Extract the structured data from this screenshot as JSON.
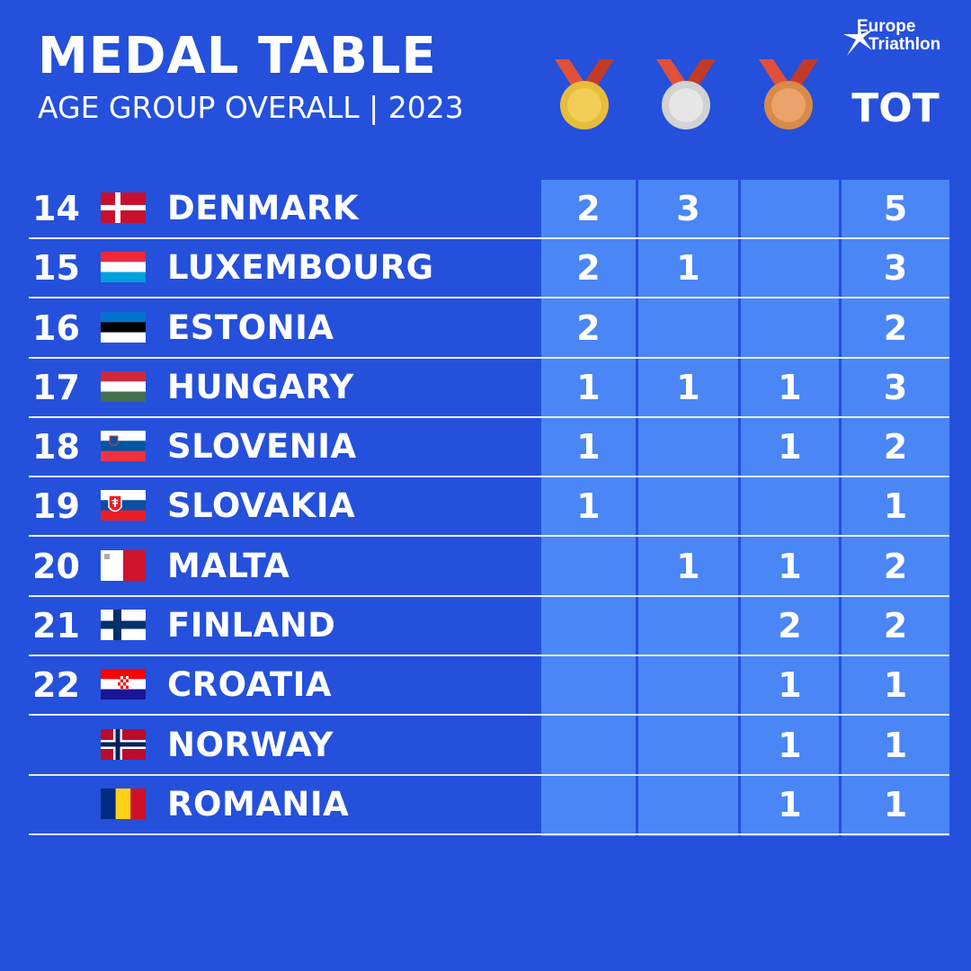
{
  "header": {
    "title": "MEDAL TABLE",
    "subtitle": "AGE GROUP OVERALL | 2023",
    "logo_line1": "Europe",
    "logo_line2": "Triathlon",
    "gold_icon": "gold-medal-icon",
    "silver_icon": "silver-medal-icon",
    "bronze_icon": "bronze-medal-icon",
    "total_label": "TOT"
  },
  "colors": {
    "background": "#2450dc",
    "column_band": "#4a86f5",
    "gold": "#e8bc3c",
    "silver": "#d8d8d8",
    "bronze": "#d98a4a",
    "ribbon": "#e0503a"
  },
  "rows": [
    {
      "rank": "14",
      "country": "DENMARK",
      "flag": "denmark-flag",
      "gold": "2",
      "silver": "3",
      "bronze": "",
      "total": "5"
    },
    {
      "rank": "15",
      "country": "LUXEMBOURG",
      "flag": "luxembourg-flag",
      "gold": "2",
      "silver": "1",
      "bronze": "",
      "total": "3"
    },
    {
      "rank": "16",
      "country": "ESTONIA",
      "flag": "estonia-flag",
      "gold": "2",
      "silver": "",
      "bronze": "",
      "total": "2"
    },
    {
      "rank": "17",
      "country": "HUNGARY",
      "flag": "hungary-flag",
      "gold": "1",
      "silver": "1",
      "bronze": "1",
      "total": "3"
    },
    {
      "rank": "18",
      "country": "SLOVENIA",
      "flag": "slovenia-flag",
      "gold": "1",
      "silver": "",
      "bronze": "1",
      "total": "2"
    },
    {
      "rank": "19",
      "country": "SLOVAKIA",
      "flag": "slovakia-flag",
      "gold": "1",
      "silver": "",
      "bronze": "",
      "total": "1"
    },
    {
      "rank": "20",
      "country": "MALTA",
      "flag": "malta-flag",
      "gold": "",
      "silver": "1",
      "bronze": "1",
      "total": "2"
    },
    {
      "rank": "21",
      "country": "FINLAND",
      "flag": "finland-flag",
      "gold": "",
      "silver": "",
      "bronze": "2",
      "total": "2"
    },
    {
      "rank": "22",
      "country": "CROATIA",
      "flag": "croatia-flag",
      "gold": "",
      "silver": "",
      "bronze": "1",
      "total": "1"
    },
    {
      "rank": "",
      "country": "NORWAY",
      "flag": "norway-flag",
      "gold": "",
      "silver": "",
      "bronze": "1",
      "total": "1"
    },
    {
      "rank": "",
      "country": "ROMANIA",
      "flag": "romania-flag",
      "gold": "",
      "silver": "",
      "bronze": "1",
      "total": "1"
    }
  ]
}
